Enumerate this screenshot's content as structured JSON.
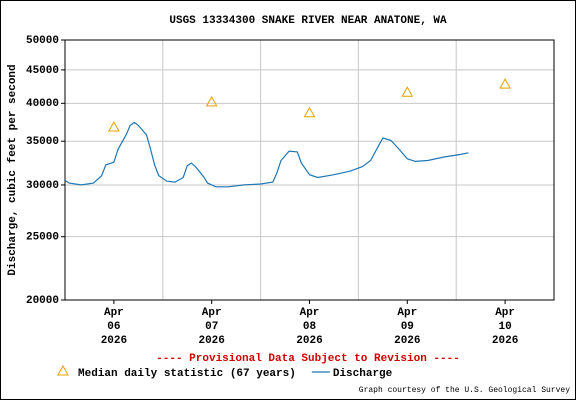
{
  "chart_data": {
    "type": "line",
    "title": "USGS 13334300 SNAKE RIVER NEAR ANATONE, WA",
    "ylabel": "Discharge, cubic feet per second",
    "annotation": "---- Provisional Data Subject to Revision ----",
    "credit": "Graph courtesy of the U.S. Geological Survey",
    "log_y": true,
    "grid": true,
    "legend": "bottom",
    "ylim": [
      20000,
      50000
    ],
    "yticks": [
      20000,
      25000,
      30000,
      35000,
      40000,
      45000,
      50000
    ],
    "xlim": [
      "2026-04-06T00:00",
      "2026-04-11T00:00"
    ],
    "xticks": [
      {
        "value": "2026-04-06T12:00",
        "label": "Apr 06 2026"
      },
      {
        "value": "2026-04-07T12:00",
        "label": "Apr 07 2026"
      },
      {
        "value": "2026-04-08T12:00",
        "label": "Apr 08 2026"
      },
      {
        "value": "2026-04-09T12:00",
        "label": "Apr 09 2026"
      },
      {
        "value": "2026-04-10T12:00",
        "label": "Apr 10 2026"
      }
    ],
    "xgrid": [
      "2026-04-07T00:00",
      "2026-04-08T00:00",
      "2026-04-09T00:00",
      "2026-04-10T00:00"
    ],
    "series": [
      {
        "name": "Median daily statistic (67 years)",
        "kind": "marker",
        "color": "#e8a000",
        "x": [
          "2026-04-06T12:00",
          "2026-04-07T12:00",
          "2026-04-08T12:00",
          "2026-04-09T12:00",
          "2026-04-10T12:00"
        ],
        "values": [
          36800,
          40200,
          38700,
          41600,
          42800
        ]
      },
      {
        "name": "Discharge",
        "kind": "line",
        "color": "#1f77b4",
        "x": [
          "2026-04-06T00:00",
          "2026-04-06T01:00",
          "2026-04-06T04:00",
          "2026-04-06T07:00",
          "2026-04-06T09:00",
          "2026-04-06T10:00",
          "2026-04-06T12:00",
          "2026-04-06T13:00",
          "2026-04-06T15:00",
          "2026-04-06T16:00",
          "2026-04-06T17:00",
          "2026-04-06T18:00",
          "2026-04-06T20:00",
          "2026-04-06T21:00",
          "2026-04-06T22:00",
          "2026-04-06T23:00",
          "2026-04-07T01:00",
          "2026-04-07T03:00",
          "2026-04-07T05:00",
          "2026-04-07T06:00",
          "2026-04-07T07:00",
          "2026-04-07T08:00",
          "2026-04-07T10:00",
          "2026-04-07T11:00",
          "2026-04-07T13:00",
          "2026-04-07T16:00",
          "2026-04-07T20:00",
          "2026-04-08T00:00",
          "2026-04-08T03:00",
          "2026-04-08T04:00",
          "2026-04-08T05:00",
          "2026-04-08T07:00",
          "2026-04-08T09:00",
          "2026-04-08T10:00",
          "2026-04-08T12:00",
          "2026-04-08T14:00",
          "2026-04-08T18:00",
          "2026-04-08T22:00",
          "2026-04-09T01:00",
          "2026-04-09T03:00",
          "2026-04-09T05:00",
          "2026-04-09T06:00",
          "2026-04-09T08:00",
          "2026-04-09T10:00",
          "2026-04-09T12:00",
          "2026-04-09T14:00",
          "2026-04-09T17:00",
          "2026-04-09T21:00",
          "2026-04-10T01:00",
          "2026-04-10T03:00"
        ],
        "values": [
          30500,
          30200,
          30000,
          30200,
          31000,
          32200,
          32500,
          34000,
          35800,
          37000,
          37400,
          37000,
          35800,
          34000,
          32200,
          31000,
          30400,
          30300,
          30800,
          32100,
          32400,
          32000,
          30900,
          30200,
          29800,
          29800,
          30000,
          30100,
          30300,
          31300,
          32700,
          33800,
          33700,
          32400,
          31100,
          30800,
          31100,
          31500,
          32000,
          32700,
          34500,
          35400,
          35100,
          34000,
          32900,
          32600,
          32700,
          33100,
          33400,
          33600
        ]
      }
    ]
  }
}
